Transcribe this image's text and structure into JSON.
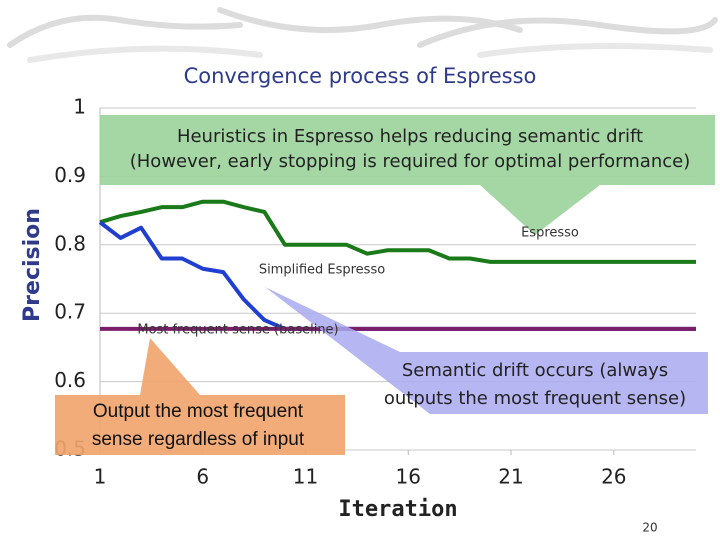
{
  "chart_data": {
    "type": "line",
    "title": "Convergence process of Espresso",
    "x_label": "Iteration",
    "y_label": "Precision",
    "x": [
      1,
      2,
      3,
      4,
      5,
      6,
      7,
      8,
      9,
      10,
      11,
      12,
      13,
      14,
      15,
      16,
      17,
      18,
      19,
      20,
      21,
      22,
      23,
      24,
      25,
      26,
      27,
      28,
      29,
      30
    ],
    "xlim": [
      1,
      30
    ],
    "xticks": [
      1,
      6,
      11,
      16,
      21,
      26
    ],
    "ylim": [
      0.5,
      1
    ],
    "yticks": [
      0.5,
      0.6,
      0.7,
      0.8,
      0.9,
      1
    ],
    "grid": true,
    "series": [
      {
        "name": "Espresso",
        "color": "#1a7a1a",
        "values": [
          0.833,
          0.842,
          0.848,
          0.855,
          0.855,
          0.863,
          0.863,
          0.855,
          0.848,
          0.8,
          0.8,
          0.8,
          0.8,
          0.787,
          0.792,
          0.792,
          0.792,
          0.78,
          0.78,
          0.775,
          0.775,
          0.775,
          0.775,
          0.775,
          0.775,
          0.775,
          0.775,
          0.775,
          0.775,
          0.775
        ]
      },
      {
        "name": "Simplified Espresso",
        "color": "#1f3fd0",
        "values": [
          0.833,
          0.81,
          0.825,
          0.78,
          0.78,
          0.765,
          0.76,
          0.72,
          0.69,
          0.677,
          0.677,
          0.677,
          0.677,
          0.677,
          0.677,
          0.677,
          0.677,
          0.677,
          0.677,
          0.677,
          0.677,
          0.677,
          0.677,
          0.677,
          0.677,
          0.677,
          0.677,
          0.677,
          0.677,
          0.677
        ]
      },
      {
        "name": "Most frequent sense (baseline)",
        "color": "#7b1f6a",
        "values": [
          0.677,
          0.677,
          0.677,
          0.677,
          0.677,
          0.677,
          0.677,
          0.677,
          0.677,
          0.677,
          0.677,
          0.677,
          0.677,
          0.677,
          0.677,
          0.677,
          0.677,
          0.677,
          0.677,
          0.677,
          0.677,
          0.677,
          0.677,
          0.677,
          0.677,
          0.677,
          0.677,
          0.677,
          0.677,
          0.677
        ]
      }
    ],
    "annotations": [
      [
        "Heuristics in Espresso helps reducing semantic drift",
        "(However, early stopping is required for optimal performance)"
      ],
      [
        "Semantic drift occurs (always",
        "outputs the most frequent sense)"
      ],
      [
        "Output the most frequent",
        "sense regardless of input"
      ]
    ],
    "page_number": "20"
  }
}
